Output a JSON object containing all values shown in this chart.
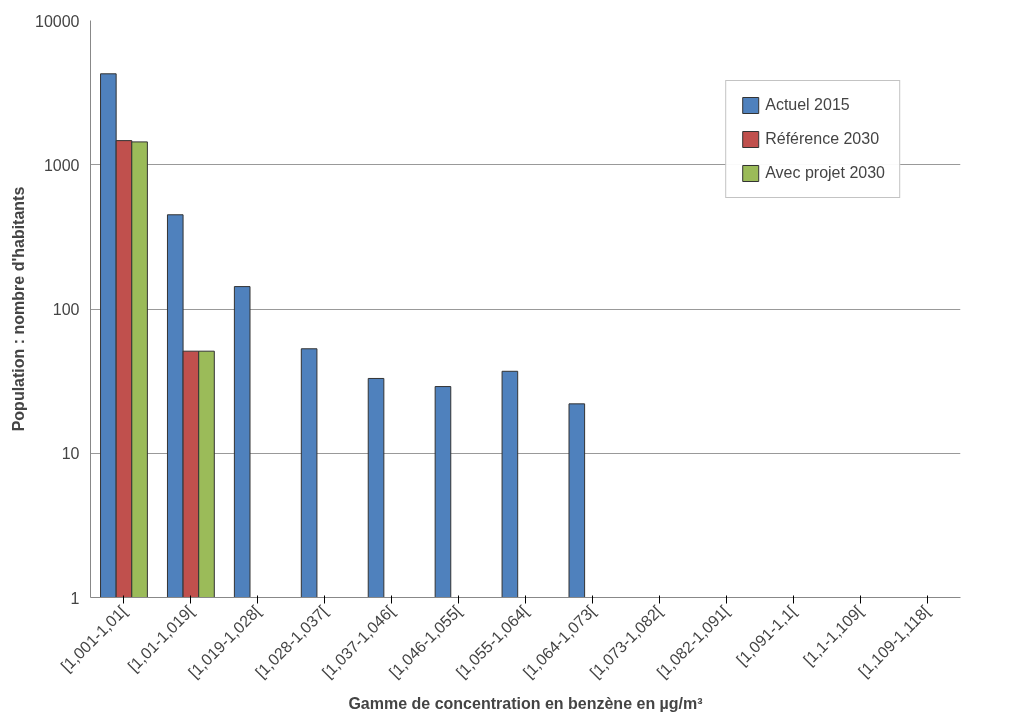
{
  "chart_data": {
    "type": "bar",
    "xlabel": "Gamme de concentration en benzène en µg/m³",
    "ylabel": "Population : nombre d'habitants",
    "categories": [
      "[1,001-1,01[",
      "[1,01-1,019[",
      "[1,019-1,028[",
      "[1,028-1,037[",
      "[1,037-1,046[",
      "[1,046-1,055[",
      "[1,055-1,064[",
      "[1,064-1,073[",
      "[1,073-1,082[",
      "[1,082-1,091[",
      "[1,091-1,1[",
      "[1,1-1,109[",
      "[1,109-1,118["
    ],
    "series": [
      {
        "name": "Actuel 2015",
        "color": "#4f81bd",
        "values": [
          4270,
          450,
          143,
          53,
          33,
          29,
          37,
          22,
          null,
          null,
          null,
          null,
          null
        ]
      },
      {
        "name": "Référence 2030",
        "color": "#c0504d",
        "values": [
          1470,
          51,
          null,
          null,
          null,
          null,
          null,
          null,
          null,
          null,
          null,
          null,
          null
        ]
      },
      {
        "name": "Avec projet 2030",
        "color": "#9bbb59",
        "values": [
          1440,
          51,
          null,
          null,
          null,
          null,
          null,
          null,
          null,
          null,
          null,
          null,
          null
        ]
      }
    ],
    "log": true,
    "ylim": [
      1,
      10000
    ],
    "yticks": [
      1,
      10,
      100,
      1000,
      10000
    ],
    "grid": "y",
    "legend": "top right"
  }
}
